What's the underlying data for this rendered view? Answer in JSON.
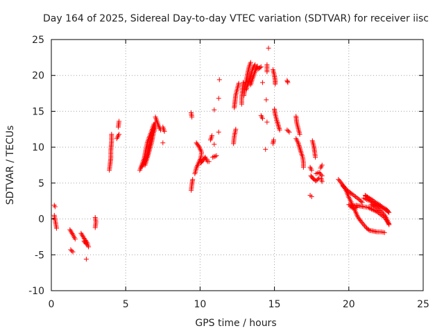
{
  "chart_data": {
    "type": "scatter",
    "title": "Day 164 of 2025, Sidereal Day-to-day VTEC variation (SDTVAR) for receiver iisc",
    "xlabel": "GPS time / hours",
    "ylabel": "SDTVAR / TECUs",
    "xlim": [
      0,
      25
    ],
    "ylim": [
      -10,
      25
    ],
    "xticks": [
      "0",
      "5",
      "10",
      "15",
      "20",
      "25"
    ],
    "yticks": [
      "-10",
      "-5",
      "0",
      "5",
      "10",
      "15",
      "20",
      "25"
    ],
    "grid": true,
    "marker": "+",
    "color": "#ff0000",
    "series": [
      {
        "name": "tracks",
        "segments": [
          [
            [
              0.2,
              1.9
            ],
            [
              0.25,
              1.7
            ]
          ],
          [
            [
              0.2,
              0.5
            ],
            [
              0.25,
              -0.1
            ],
            [
              0.3,
              -0.7
            ],
            [
              0.35,
              -1.3
            ]
          ],
          [
            [
              1.25,
              -1.5
            ],
            [
              1.45,
              -2.2
            ],
            [
              1.6,
              -2.8
            ]
          ],
          [
            [
              1.3,
              -4.3
            ],
            [
              1.45,
              -4.6
            ]
          ],
          [
            [
              2.0,
              -2.0
            ],
            [
              2.2,
              -2.7
            ],
            [
              2.4,
              -3.3
            ],
            [
              2.5,
              -3.9
            ]
          ],
          [
            [
              2.2,
              -3.1
            ],
            [
              2.35,
              -3.5
            ]
          ],
          [
            [
              2.35,
              -5.6
            ]
          ],
          [
            [
              2.95,
              0.2
            ],
            [
              3.0,
              -0.4
            ],
            [
              2.95,
              -1.2
            ]
          ],
          [
            [
              3.9,
              6.8
            ],
            [
              3.95,
              7.6
            ],
            [
              4.0,
              8.5
            ],
            [
              4.0,
              9.5
            ],
            [
              4.05,
              10.8
            ],
            [
              4.05,
              11.8
            ]
          ],
          [
            [
              4.4,
              11.2
            ],
            [
              4.55,
              11.8
            ]
          ],
          [
            [
              4.5,
              12.8
            ],
            [
              4.55,
              13.6
            ]
          ],
          [
            [
              5.95,
              6.8
            ],
            [
              6.1,
              7.6
            ],
            [
              6.25,
              8.5
            ],
            [
              6.35,
              9.6
            ],
            [
              6.45,
              10.6
            ],
            [
              6.6,
              11.5
            ],
            [
              6.75,
              12.3
            ],
            [
              6.9,
              13.2
            ]
          ],
          [
            [
              6.1,
              7.3
            ],
            [
              6.3,
              8.0
            ],
            [
              6.45,
              9.0
            ],
            [
              6.55,
              10.1
            ],
            [
              6.7,
              11.2
            ],
            [
              6.85,
              12.4
            ],
            [
              7.0,
              13.4
            ]
          ],
          [
            [
              6.3,
              7.5
            ],
            [
              6.45,
              8.5
            ],
            [
              6.6,
              9.6
            ],
            [
              6.75,
              10.7
            ],
            [
              6.85,
              11.8
            ],
            [
              7.0,
              12.8
            ]
          ],
          [
            [
              7.0,
              14.2
            ],
            [
              7.1,
              13.6
            ],
            [
              7.2,
              13.0
            ],
            [
              7.35,
              12.4
            ]
          ],
          [
            [
              7.5,
              12.8
            ],
            [
              7.6,
              12.2
            ]
          ],
          [
            [
              7.5,
              10.6
            ]
          ],
          [
            [
              9.4,
              14.8
            ],
            [
              9.45,
              14.2
            ]
          ],
          [
            [
              9.4,
              4.0
            ],
            [
              9.45,
              4.8
            ],
            [
              9.5,
              5.5
            ]
          ],
          [
            [
              9.65,
              6.3
            ],
            [
              9.75,
              7.1
            ],
            [
              9.9,
              7.8
            ],
            [
              10.05,
              8.5
            ],
            [
              10.1,
              9.3
            ],
            [
              9.95,
              10.0
            ],
            [
              9.75,
              10.6
            ]
          ],
          [
            [
              10.05,
              7.8
            ],
            [
              10.2,
              8.2
            ],
            [
              10.35,
              8.6
            ],
            [
              10.5,
              8.0
            ]
          ],
          [
            [
              10.6,
              8.0
            ]
          ],
          [
            [
              10.7,
              11.0
            ],
            [
              10.8,
              11.6
            ]
          ],
          [
            [
              10.85,
              8.6
            ],
            [
              11.1,
              8.8
            ]
          ],
          [
            [
              10.95,
              10.4
            ]
          ],
          [
            [
              10.95,
              15.2
            ]
          ],
          [
            [
              11.25,
              12.1
            ]
          ],
          [
            [
              11.25,
              16.8
            ]
          ],
          [
            [
              11.3,
              19.4
            ]
          ],
          [
            [
              12.25,
              10.5
            ],
            [
              12.3,
              11.5
            ],
            [
              12.4,
              12.5
            ]
          ],
          [
            [
              12.3,
              15.5
            ],
            [
              12.35,
              16.4
            ],
            [
              12.4,
              17.3
            ],
            [
              12.5,
              18.1
            ],
            [
              12.6,
              18.9
            ]
          ],
          [
            [
              12.8,
              16.0
            ],
            [
              12.8,
              17.0
            ],
            [
              12.85,
              18.0
            ],
            [
              12.9,
              19.0
            ]
          ],
          [
            [
              12.95,
              17.2
            ],
            [
              13.0,
              18.3
            ],
            [
              13.1,
              19.3
            ],
            [
              13.2,
              20.3
            ],
            [
              13.3,
              21.2
            ],
            [
              13.4,
              21.8
            ]
          ],
          [
            [
              13.1,
              18.0
            ],
            [
              13.25,
              19.0
            ],
            [
              13.4,
              20.0
            ],
            [
              13.55,
              21.0
            ],
            [
              13.7,
              21.5
            ]
          ],
          [
            [
              13.4,
              18.7
            ],
            [
              13.55,
              19.7
            ],
            [
              13.7,
              20.6
            ],
            [
              13.85,
              21.3
            ]
          ],
          [
            [
              13.9,
              20.9
            ],
            [
              14.1,
              21.2
            ]
          ],
          [
            [
              14.1,
              14.4
            ],
            [
              14.2,
              14.0
            ]
          ],
          [
            [
              14.2,
              19.0
            ]
          ],
          [
            [
              14.45,
              16.6
            ]
          ],
          [
            [
              14.5,
              20.5
            ],
            [
              14.5,
              21.5
            ]
          ],
          [
            [
              14.5,
              13.5
            ]
          ],
          [
            [
              14.4,
              9.7
            ]
          ],
          [
            [
              14.6,
              23.8
            ]
          ],
          [
            [
              14.9,
              10.5
            ],
            [
              14.95,
              11.0
            ]
          ],
          [
            [
              14.9,
              20.8
            ],
            [
              15.0,
              20.0
            ],
            [
              15.05,
              19.3
            ],
            [
              15.05,
              18.8
            ]
          ],
          [
            [
              15.0,
              15.3
            ],
            [
              15.05,
              14.6
            ],
            [
              15.15,
              13.8
            ],
            [
              15.25,
              13.1
            ],
            [
              15.35,
              12.4
            ]
          ],
          [
            [
              15.85,
              19.3
            ],
            [
              15.9,
              19.0
            ]
          ],
          [
            [
              15.85,
              12.4
            ],
            [
              16.0,
              12.1
            ]
          ],
          [
            [
              16.45,
              14.3
            ],
            [
              16.5,
              13.4
            ],
            [
              16.6,
              12.6
            ],
            [
              16.7,
              11.8
            ]
          ],
          [
            [
              16.45,
              11.2
            ],
            [
              16.6,
              10.6
            ],
            [
              16.7,
              9.9
            ],
            [
              16.8,
              9.2
            ],
            [
              16.9,
              8.6
            ],
            [
              16.95,
              7.8
            ],
            [
              16.95,
              7.2
            ]
          ],
          [
            [
              17.4,
              7.2
            ],
            [
              17.5,
              6.8
            ]
          ],
          [
            [
              17.4,
              3.3
            ],
            [
              17.5,
              3.1
            ]
          ],
          [
            [
              17.45,
              6.0
            ],
            [
              17.6,
              5.6
            ],
            [
              17.8,
              5.3
            ],
            [
              18.0,
              5.7
            ]
          ],
          [
            [
              17.55,
              10.9
            ],
            [
              17.65,
              10.1
            ],
            [
              17.7,
              9.4
            ],
            [
              17.75,
              8.6
            ]
          ],
          [
            [
              17.8,
              6.3
            ],
            [
              18.0,
              6.5
            ],
            [
              18.2,
              6.0
            ]
          ],
          [
            [
              18.1,
              7.1
            ],
            [
              18.2,
              7.5
            ]
          ],
          [
            [
              18.15,
              5.6
            ],
            [
              18.2,
              5.2
            ]
          ],
          [
            [
              19.3,
              5.5
            ],
            [
              19.5,
              5.0
            ],
            [
              19.7,
              4.4
            ],
            [
              19.85,
              3.8
            ],
            [
              20.0,
              3.0
            ],
            [
              20.15,
              2.4
            ],
            [
              20.3,
              1.6
            ],
            [
              20.45,
              1.0
            ],
            [
              20.6,
              0.3
            ],
            [
              20.8,
              -0.3
            ],
            [
              21.0,
              -0.8
            ],
            [
              21.2,
              -1.3
            ],
            [
              21.4,
              -1.6
            ],
            [
              21.65,
              -1.7
            ],
            [
              21.9,
              -1.8
            ],
            [
              22.2,
              -1.8
            ],
            [
              22.4,
              -1.9
            ]
          ],
          [
            [
              19.6,
              4.6
            ],
            [
              19.8,
              4.2
            ],
            [
              20.0,
              3.8
            ],
            [
              20.2,
              3.5
            ],
            [
              20.45,
              3.1
            ],
            [
              20.7,
              2.7
            ],
            [
              20.9,
              2.3
            ]
          ],
          [
            [
              20.0,
              2.0
            ],
            [
              20.25,
              1.8
            ],
            [
              20.5,
              1.9
            ],
            [
              20.75,
              1.8
            ],
            [
              21.0,
              1.7
            ],
            [
              21.3,
              1.6
            ],
            [
              21.6,
              1.3
            ],
            [
              21.9,
              1.0
            ],
            [
              22.15,
              0.6
            ],
            [
              22.4,
              0.2
            ],
            [
              22.6,
              -0.4
            ],
            [
              22.7,
              -0.7
            ]
          ],
          [
            [
              20.1,
              1.7
            ],
            [
              20.35,
              1.5
            ],
            [
              20.55,
              1.6
            ]
          ],
          [
            [
              21.0,
              2.9
            ],
            [
              21.2,
              2.7
            ],
            [
              21.45,
              2.5
            ],
            [
              21.7,
              2.2
            ],
            [
              21.95,
              1.9
            ],
            [
              22.2,
              1.6
            ],
            [
              22.45,
              1.3
            ],
            [
              22.65,
              1.0
            ]
          ],
          [
            [
              21.1,
              3.3
            ],
            [
              21.3,
              3.0
            ],
            [
              21.55,
              2.7
            ],
            [
              21.8,
              2.3
            ],
            [
              22.05,
              2.0
            ],
            [
              22.3,
              1.6
            ],
            [
              22.55,
              1.3
            ],
            [
              22.7,
              0.9
            ]
          ],
          [
            [
              21.5,
              2.0
            ],
            [
              21.75,
              1.7
            ],
            [
              22.0,
              1.3
            ],
            [
              22.25,
              0.9
            ],
            [
              22.45,
              0.4
            ],
            [
              22.6,
              -0.2
            ],
            [
              22.7,
              -0.8
            ]
          ]
        ]
      }
    ]
  }
}
